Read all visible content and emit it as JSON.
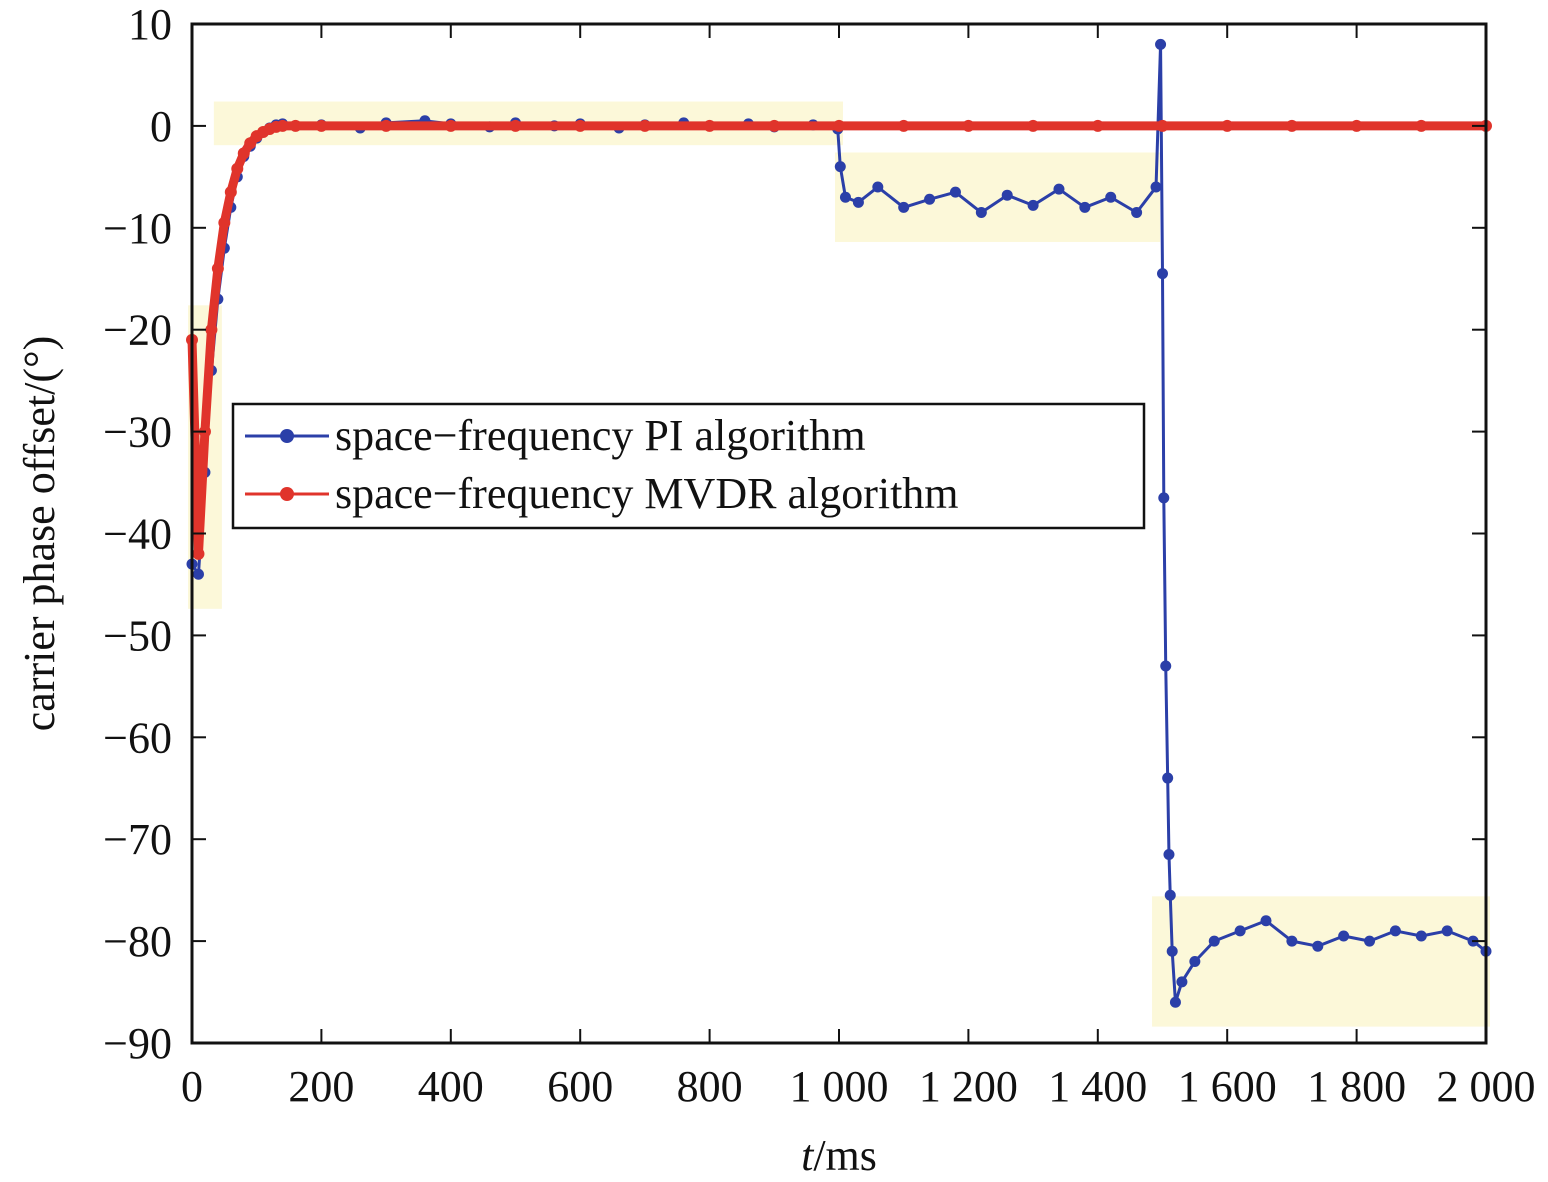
{
  "chart_data": {
    "type": "line",
    "xlabel": {
      "italic": "t",
      "rest": "/ms"
    },
    "ylabel": "carrier phase offset/(°)",
    "xlim": [
      0,
      2000
    ],
    "ylim": [
      -90,
      10
    ],
    "x_ticks": [
      {
        "value": 0,
        "label": "0"
      },
      {
        "value": 200,
        "label": "200"
      },
      {
        "value": 400,
        "label": "400"
      },
      {
        "value": 600,
        "label": "600"
      },
      {
        "value": 800,
        "label": "800"
      },
      {
        "value": 1000,
        "label": "1 000"
      },
      {
        "value": 1200,
        "label": "1 200"
      },
      {
        "value": 1400,
        "label": "1 400"
      },
      {
        "value": 1600,
        "label": "1 600"
      },
      {
        "value": 1800,
        "label": "1 800"
      },
      {
        "value": 2000,
        "label": "2 000"
      }
    ],
    "y_ticks": [
      {
        "value": 10,
        "label": "10"
      },
      {
        "value": 0,
        "label": "0"
      },
      {
        "value": -10,
        "label": "−10"
      },
      {
        "value": -20,
        "label": "−20"
      },
      {
        "value": -30,
        "label": "−30"
      },
      {
        "value": -40,
        "label": "−40"
      },
      {
        "value": -50,
        "label": "−50"
      },
      {
        "value": -60,
        "label": "−60"
      },
      {
        "value": -70,
        "label": "−70"
      },
      {
        "value": -80,
        "label": "−80"
      },
      {
        "value": -90,
        "label": "−90"
      }
    ],
    "grid": false,
    "legend_position": "center-left",
    "series": [
      {
        "name": "space−frequency PI algorithm",
        "color": "#2b3fa8",
        "marker": "circle",
        "x": [
          0,
          10,
          20,
          30,
          40,
          50,
          60,
          70,
          80,
          90,
          100,
          110,
          120,
          130,
          140,
          160,
          200,
          260,
          300,
          360,
          400,
          460,
          500,
          560,
          600,
          660,
          700,
          760,
          800,
          860,
          900,
          960,
          998,
          1002,
          1010,
          1030,
          1060,
          1100,
          1140,
          1180,
          1220,
          1260,
          1300,
          1340,
          1380,
          1420,
          1460,
          1490,
          1497,
          1500,
          1502,
          1505,
          1508,
          1510,
          1512,
          1515,
          1520,
          1530,
          1550,
          1580,
          1620,
          1660,
          1700,
          1740,
          1780,
          1820,
          1860,
          1900,
          1940,
          1980,
          2000
        ],
        "y": [
          -43,
          -44,
          -34,
          -24,
          -17,
          -12,
          -8,
          -5,
          -3,
          -2,
          -1.2,
          -0.6,
          -0.2,
          0.1,
          0.2,
          0,
          0.1,
          -0.2,
          0.3,
          0.5,
          0.2,
          -0.1,
          0.3,
          0,
          0.2,
          -0.2,
          0.1,
          0.3,
          0,
          0.2,
          -0.1,
          0.1,
          -0.3,
          -4,
          -7,
          -7.5,
          -6,
          -8,
          -7.2,
          -6.5,
          -8.5,
          -6.8,
          -7.8,
          -6.2,
          -8,
          -7,
          -8.5,
          -6,
          8,
          -14.5,
          -36.5,
          -53,
          -64,
          -71.5,
          -75.5,
          -81,
          -86,
          -84,
          -82,
          -80,
          -79,
          -78,
          -80,
          -80.5,
          -79.5,
          -80,
          -79,
          -79.5,
          -79,
          -80,
          -81
        ]
      },
      {
        "name": "space−frequency MVDR algorithm",
        "color": "#e0342b",
        "marker": "circle",
        "x": [
          0,
          10,
          20,
          30,
          40,
          50,
          60,
          70,
          80,
          90,
          100,
          110,
          120,
          130,
          140,
          160,
          200,
          300,
          400,
          500,
          600,
          700,
          800,
          900,
          1000,
          1100,
          1200,
          1300,
          1400,
          1500,
          1600,
          1700,
          1800,
          1900,
          2000
        ],
        "y": [
          -21,
          -42,
          -30,
          -20,
          -14,
          -9.5,
          -6.5,
          -4.2,
          -2.7,
          -1.7,
          -1,
          -0.6,
          -0.3,
          -0.1,
          0,
          0,
          0,
          0,
          0,
          0,
          0,
          0,
          0,
          0,
          0,
          0,
          0,
          0,
          0,
          0,
          0,
          0,
          0,
          0,
          0
        ]
      }
    ]
  }
}
